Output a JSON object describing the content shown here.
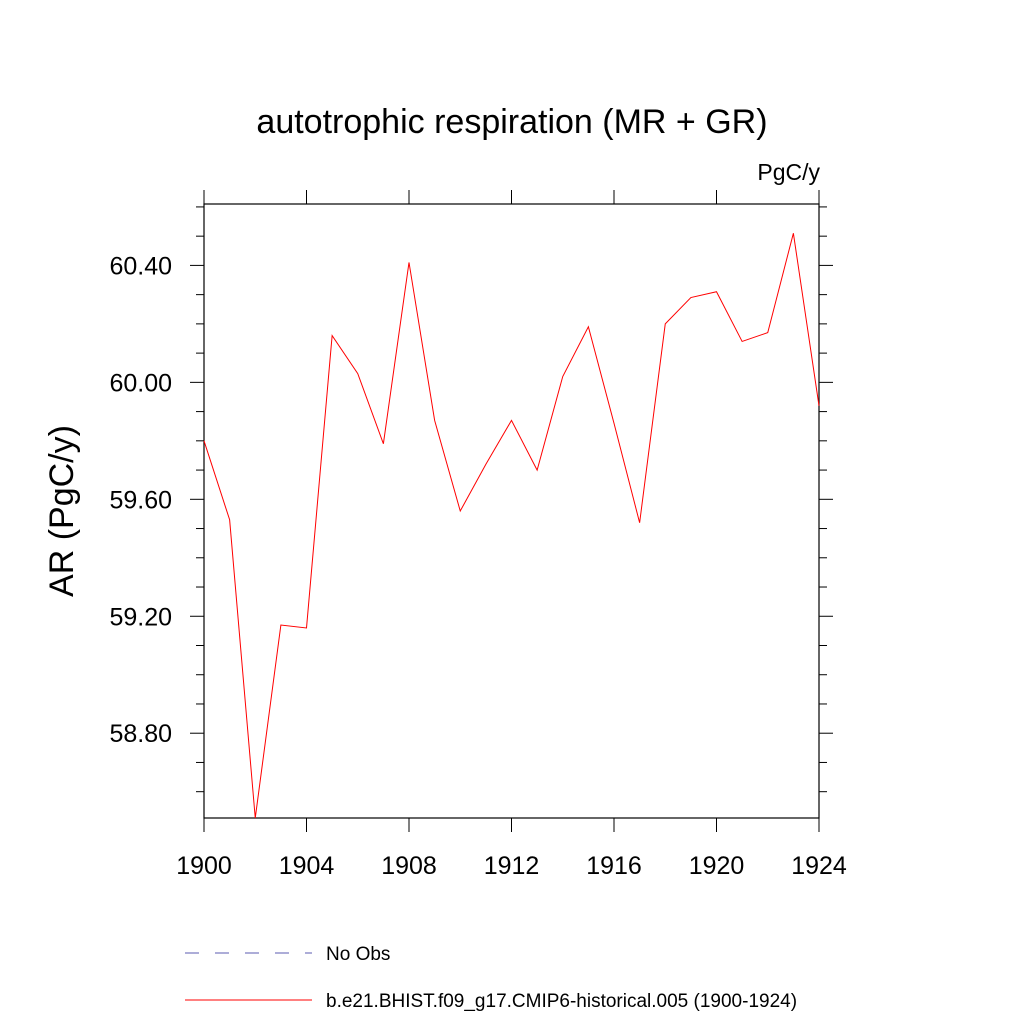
{
  "chart_data": {
    "type": "line",
    "title": "autotrophic respiration (MR + GR)",
    "units": "PgC/y",
    "ylabel": "AR  (PgC/y)",
    "xlabel": "",
    "xlim": [
      1900,
      1924
    ],
    "ylim": [
      58.51,
      60.61
    ],
    "x_ticks": [
      1900,
      1904,
      1908,
      1912,
      1916,
      1920,
      1924
    ],
    "x_tick_labels": [
      "1900",
      "1904",
      "1908",
      "1912",
      "1916",
      "1920",
      "1924"
    ],
    "y_ticks": [
      58.8,
      59.2,
      59.6,
      60.0,
      60.4
    ],
    "y_tick_labels": [
      "58.80",
      "59.20",
      "59.60",
      "60.00",
      "60.40"
    ],
    "series": [
      {
        "name": "b.e21.BHIST.f09_g17.CMIP6-historical.005 (1900-1924)",
        "color": "#ff0000",
        "x": [
          1900,
          1901,
          1902,
          1903,
          1904,
          1905,
          1906,
          1907,
          1908,
          1909,
          1910,
          1911,
          1912,
          1913,
          1914,
          1915,
          1916,
          1917,
          1918,
          1919,
          1920,
          1921,
          1922,
          1923,
          1924
        ],
        "y": [
          59.8,
          59.53,
          58.51,
          59.17,
          59.16,
          60.16,
          60.03,
          59.79,
          60.41,
          59.87,
          59.56,
          59.72,
          59.87,
          59.7,
          60.02,
          60.19,
          59.86,
          59.52,
          60.2,
          60.29,
          60.31,
          60.14,
          60.17,
          60.51,
          59.92
        ]
      }
    ],
    "legend": [
      {
        "label": "No Obs",
        "color": "#5b5bb0",
        "style": "dashed"
      },
      {
        "label": "b.e21.BHIST.f09_g17.CMIP6-historical.005 (1900-1924)",
        "color": "#ff0000",
        "style": "solid"
      }
    ],
    "legend_position": "bottom",
    "grid": false
  }
}
